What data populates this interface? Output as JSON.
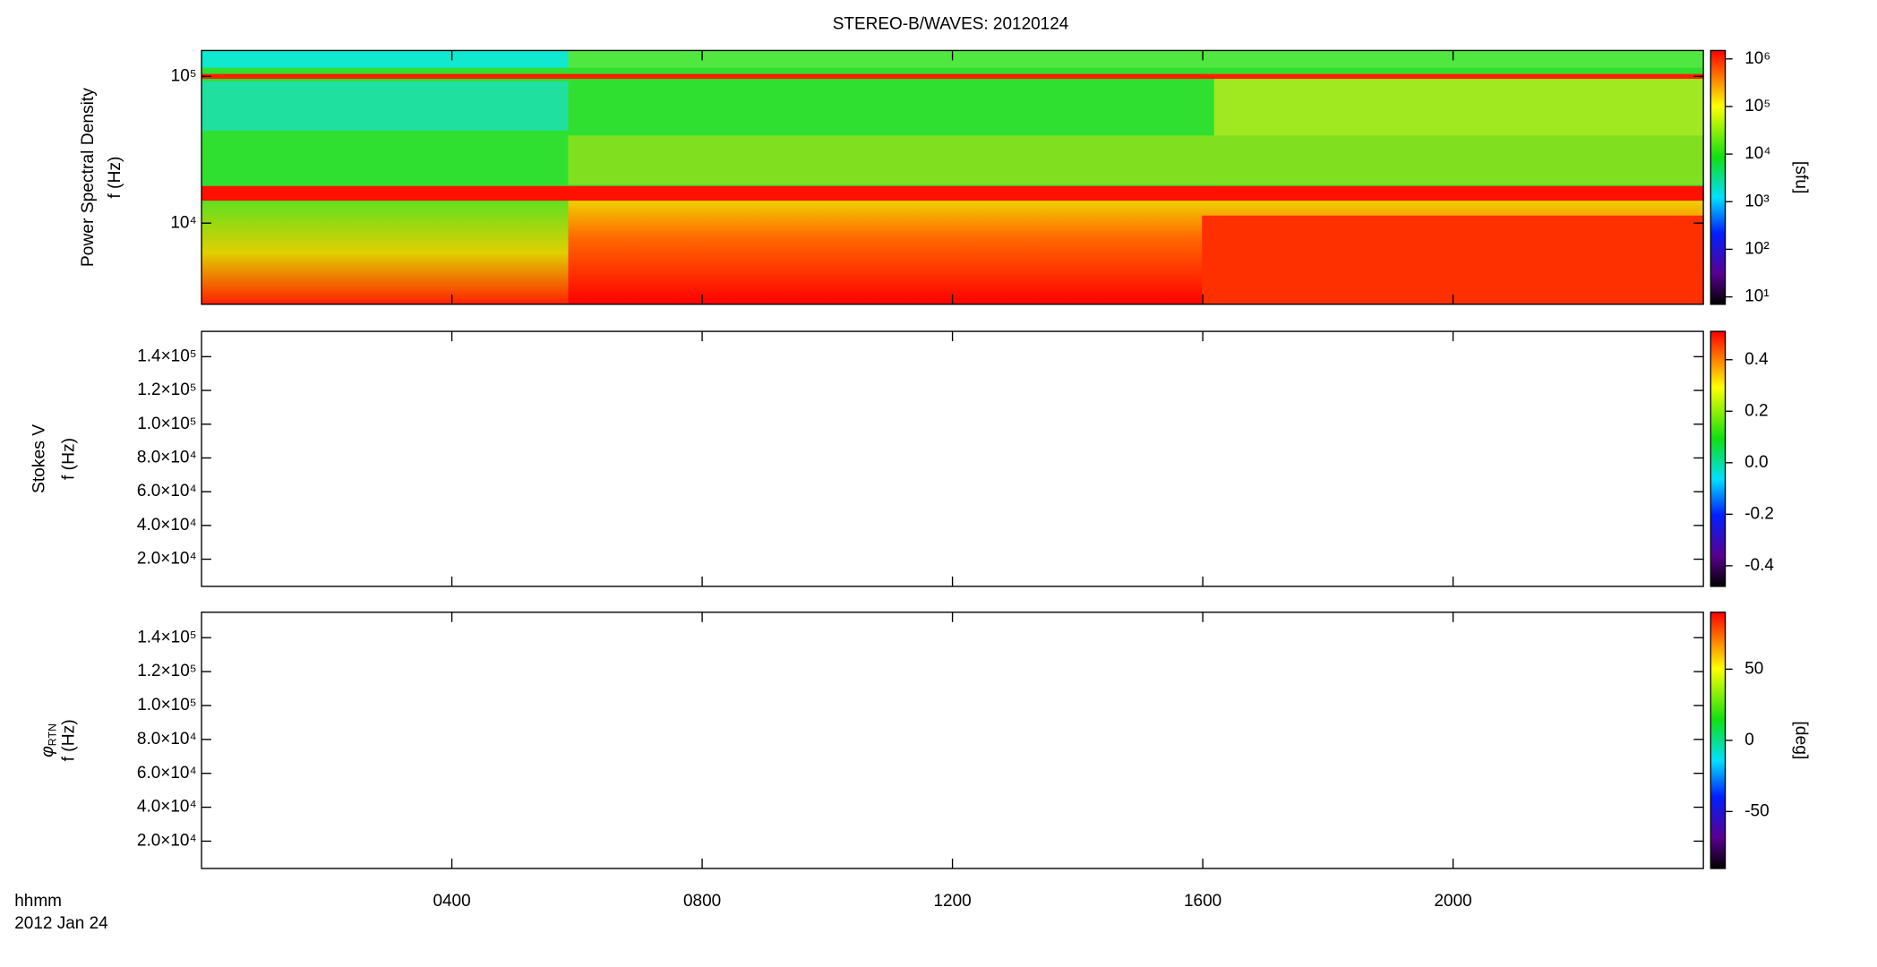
{
  "chart_data": [
    {
      "type": "heatmap",
      "title": "STEREO-B/WAVES: 20120124",
      "ylabel": "Power Spectral Density",
      "ylabel2": "f (Hz)",
      "log_y": true,
      "ylim": [
        2800,
        150000
      ],
      "yticks": [
        {
          "value": 10000,
          "label": "10⁴"
        },
        {
          "value": 100000,
          "label": "10⁵"
        }
      ],
      "xlim": [
        0,
        24
      ],
      "xticks": [
        {
          "value": 4,
          "label": "0400"
        },
        {
          "value": 8,
          "label": "0800"
        },
        {
          "value": 12,
          "label": "1200"
        },
        {
          "value": 16,
          "label": "1600"
        },
        {
          "value": 20,
          "label": "2000"
        }
      ],
      "colorbar": {
        "log": true,
        "clim": [
          7,
          1500000
        ],
        "label": "[sfu]",
        "ticks": [
          {
            "value": 10,
            "label": "10¹"
          },
          {
            "value": 100,
            "label": "10²"
          },
          {
            "value": 1000,
            "label": "10³"
          },
          {
            "value": 10000,
            "label": "10⁴"
          },
          {
            "value": 100000,
            "label": "10⁵"
          },
          {
            "value": 1000000,
            "label": "10⁶"
          }
        ]
      }
    },
    {
      "type": "heatmap",
      "ylabel": "Stokes V",
      "ylabel2": "f (Hz)",
      "log_y": false,
      "ylim": [
        3900,
        155000
      ],
      "yticks": [
        {
          "value": 20000,
          "label": "2.0×10⁴"
        },
        {
          "value": 40000,
          "label": "4.0×10⁴"
        },
        {
          "value": 60000,
          "label": "6.0×10⁴"
        },
        {
          "value": 80000,
          "label": "8.0×10⁴"
        },
        {
          "value": 100000,
          "label": "1.0×10⁵"
        },
        {
          "value": 120000,
          "label": "1.2×10⁵"
        },
        {
          "value": 140000,
          "label": "1.4×10⁵"
        }
      ],
      "xlim": [
        0,
        24
      ],
      "xticks": [
        {
          "value": 4,
          "label": "0400"
        },
        {
          "value": 8,
          "label": "0800"
        },
        {
          "value": 12,
          "label": "1200"
        },
        {
          "value": 16,
          "label": "1600"
        },
        {
          "value": 20,
          "label": "2000"
        }
      ],
      "colorbar": {
        "log": false,
        "clim": [
          -0.48,
          0.51
        ],
        "ticks": [
          -0.4,
          -0.2,
          {
            "value": 0,
            "label": "0.0"
          },
          0.2,
          0.4
        ]
      }
    },
    {
      "type": "heatmap",
      "ylabel": "φ",
      "ylabel_sub": "RTN",
      "ylabel2": "f (Hz)",
      "log_y": false,
      "ylim": [
        3900,
        155000
      ],
      "yticks": [
        {
          "value": 20000,
          "label": "2.0×10⁴"
        },
        {
          "value": 40000,
          "label": "4.0×10⁴"
        },
        {
          "value": 60000,
          "label": "6.0×10⁴"
        },
        {
          "value": 80000,
          "label": "8.0×10⁴"
        },
        {
          "value": 100000,
          "label": "1.0×10⁵"
        },
        {
          "value": 120000,
          "label": "1.2×10⁵"
        },
        {
          "value": 140000,
          "label": "1.4×10⁵"
        }
      ],
      "xlim": [
        0,
        24
      ],
      "xticks": [
        {
          "value": 4,
          "label": "0400"
        },
        {
          "value": 8,
          "label": "0800"
        },
        {
          "value": 12,
          "label": "1200"
        },
        {
          "value": 16,
          "label": "1600"
        },
        {
          "value": 20,
          "label": "2000"
        }
      ],
      "x_label": "hhmm",
      "date_label": "2012 Jan 24",
      "colorbar": {
        "log": false,
        "clim": [
          -90,
          90
        ],
        "label": "[deg]",
        "ticks": [
          -50,
          0,
          50
        ]
      }
    }
  ]
}
